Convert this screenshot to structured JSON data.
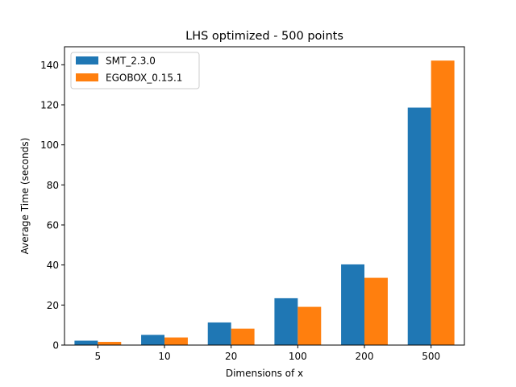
{
  "chart_data": {
    "type": "bar",
    "title": "LHS optimized - 500 points",
    "xlabel": "Dimensions of x",
    "ylabel": "Average Time (seconds)",
    "categories": [
      "5",
      "10",
      "20",
      "100",
      "200",
      "500"
    ],
    "series": [
      {
        "name": "SMT_2.3.0",
        "color": "#1f77b4",
        "values": [
          2.2,
          5.1,
          11.3,
          23.4,
          40.3,
          118.6
        ]
      },
      {
        "name": "EGOBOX_0.15.1",
        "color": "#ff7f0e",
        "values": [
          1.6,
          3.8,
          8.2,
          19.1,
          33.6,
          142.1
        ]
      }
    ],
    "ylim": [
      0,
      149
    ],
    "yticks": [
      0,
      20,
      40,
      60,
      80,
      100,
      120,
      140
    ],
    "grid": false,
    "legend_position": "top-left"
  }
}
